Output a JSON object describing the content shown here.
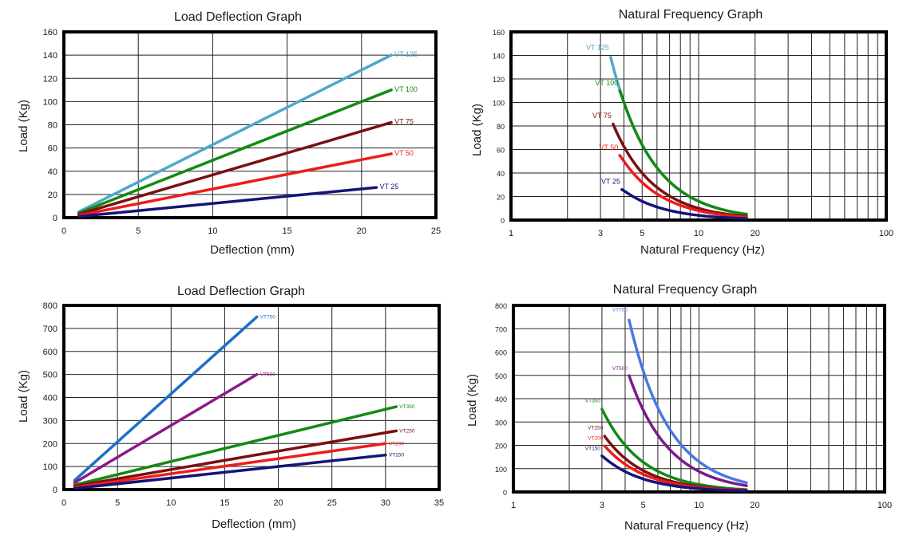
{
  "chart_data": [
    {
      "type": "line",
      "title": "Load Deflection Graph",
      "xlabel": "Deflection (mm)",
      "ylabel": "Load (Kg)",
      "xlim": [
        0,
        25
      ],
      "ylim": [
        0,
        160
      ],
      "xticks": [
        0,
        5,
        10,
        15,
        20,
        25
      ],
      "yticks": [
        0,
        20,
        40,
        60,
        80,
        100,
        120,
        140,
        160
      ],
      "grid": true,
      "series": [
        {
          "name": "VT 125",
          "color": "#4fa8c8",
          "x": [
            1,
            22
          ],
          "y": [
            5,
            140
          ]
        },
        {
          "name": "VT 100",
          "color": "#138a13",
          "x": [
            1,
            22
          ],
          "y": [
            4,
            110
          ]
        },
        {
          "name": "VT 75",
          "color": "#7a1010",
          "x": [
            1,
            22
          ],
          "y": [
            3,
            82
          ]
        },
        {
          "name": "VT 50",
          "color": "#ee1c1c",
          "x": [
            1,
            22
          ],
          "y": [
            2,
            55
          ]
        },
        {
          "name": "VT 25",
          "color": "#141478",
          "x": [
            1,
            21
          ],
          "y": [
            1,
            26
          ]
        }
      ]
    },
    {
      "type": "line",
      "title": "Natural Frequency Graph",
      "xlabel": "Natural Frequency (Hz)",
      "ylabel": "Load (Kg)",
      "xscale": "log",
      "xlim": [
        1,
        100
      ],
      "ylim": [
        0,
        160
      ],
      "xticks": [
        1,
        3,
        5,
        10,
        20,
        100
      ],
      "yticks": [
        0,
        20,
        40,
        60,
        80,
        100,
        120,
        140,
        160
      ],
      "grid": true,
      "series": [
        {
          "name": "VT 125",
          "color": "#4fa8c8",
          "k": 1600,
          "x": [
            3.4,
            18
          ],
          "y": [
            140,
            5
          ]
        },
        {
          "name": "VT 100",
          "color": "#138a13",
          "k": 1600,
          "x": [
            3.8,
            18
          ],
          "y": [
            110,
            5
          ]
        },
        {
          "name": "VT 75",
          "color": "#7a1010",
          "k": 1000,
          "x": [
            3.5,
            18
          ],
          "y": [
            82,
            3
          ]
        },
        {
          "name": "VT 50",
          "color": "#ee1c1c",
          "k": 800,
          "x": [
            3.8,
            18
          ],
          "y": [
            55,
            2.5
          ]
        },
        {
          "name": "VT 25",
          "color": "#141478",
          "k": 400,
          "x": [
            3.9,
            18
          ],
          "y": [
            26,
            1.2
          ]
        }
      ]
    },
    {
      "type": "line",
      "title": "Load Deflection Graph",
      "xlabel": "Deflection (mm)",
      "ylabel": "Load (Kg)",
      "xlim": [
        0,
        35
      ],
      "ylim": [
        0,
        800
      ],
      "xticks": [
        0,
        5,
        10,
        15,
        20,
        25,
        30,
        35
      ],
      "yticks": [
        0,
        100,
        200,
        300,
        400,
        500,
        600,
        700,
        800
      ],
      "grid": true,
      "series": [
        {
          "name": "VT750",
          "color": "#1e6fc8",
          "x": [
            1,
            18
          ],
          "y": [
            40,
            750
          ]
        },
        {
          "name": "VT500",
          "color": "#8b1a8b",
          "x": [
            1,
            18
          ],
          "y": [
            30,
            500
          ]
        },
        {
          "name": "VT350",
          "color": "#138a13",
          "x": [
            1,
            31
          ],
          "y": [
            20,
            360
          ]
        },
        {
          "name": "VT250",
          "color": "#7a1010",
          "x": [
            1,
            31
          ],
          "y": [
            15,
            255
          ]
        },
        {
          "name": "VT200",
          "color": "#ee1c1c",
          "x": [
            1,
            30
          ],
          "y": [
            10,
            200
          ]
        },
        {
          "name": "VT150",
          "color": "#141478",
          "x": [
            1,
            30
          ],
          "y": [
            5,
            150
          ]
        }
      ]
    },
    {
      "type": "line",
      "title": "Natural Frequency Graph",
      "xlabel": "Natural Frequency (Hz)",
      "ylabel": "Load (Kg)",
      "xscale": "log",
      "xlim": [
        1,
        100
      ],
      "ylim": [
        0,
        800
      ],
      "xticks": [
        1,
        3,
        5,
        10,
        20,
        100
      ],
      "yticks": [
        0,
        100,
        200,
        300,
        400,
        500,
        600,
        700,
        800
      ],
      "grid": true,
      "series": [
        {
          "name": "VT750",
          "color": "#4a78e0",
          "k": 13000,
          "x": [
            4.2,
            18
          ],
          "y": [
            750,
            40
          ]
        },
        {
          "name": "VT500",
          "color": "#7a1a8a",
          "k": 8800,
          "x": [
            4.2,
            18
          ],
          "y": [
            500,
            27
          ]
        },
        {
          "name": "VT350",
          "color": "#138a13",
          "k": 3200,
          "x": [
            3.0,
            18
          ],
          "y": [
            360,
            10
          ]
        },
        {
          "name": "VT250",
          "color": "#7a1010",
          "k": 2300,
          "x": [
            3.1,
            18
          ],
          "y": [
            245,
            7
          ]
        },
        {
          "name": "VT200",
          "color": "#ee1c1c",
          "k": 1900,
          "x": [
            3.1,
            18
          ],
          "y": [
            200,
            6
          ]
        },
        {
          "name": "VT150",
          "color": "#141478",
          "k": 1400,
          "x": [
            3.0,
            18
          ],
          "y": [
            155,
            4
          ]
        }
      ]
    }
  ]
}
